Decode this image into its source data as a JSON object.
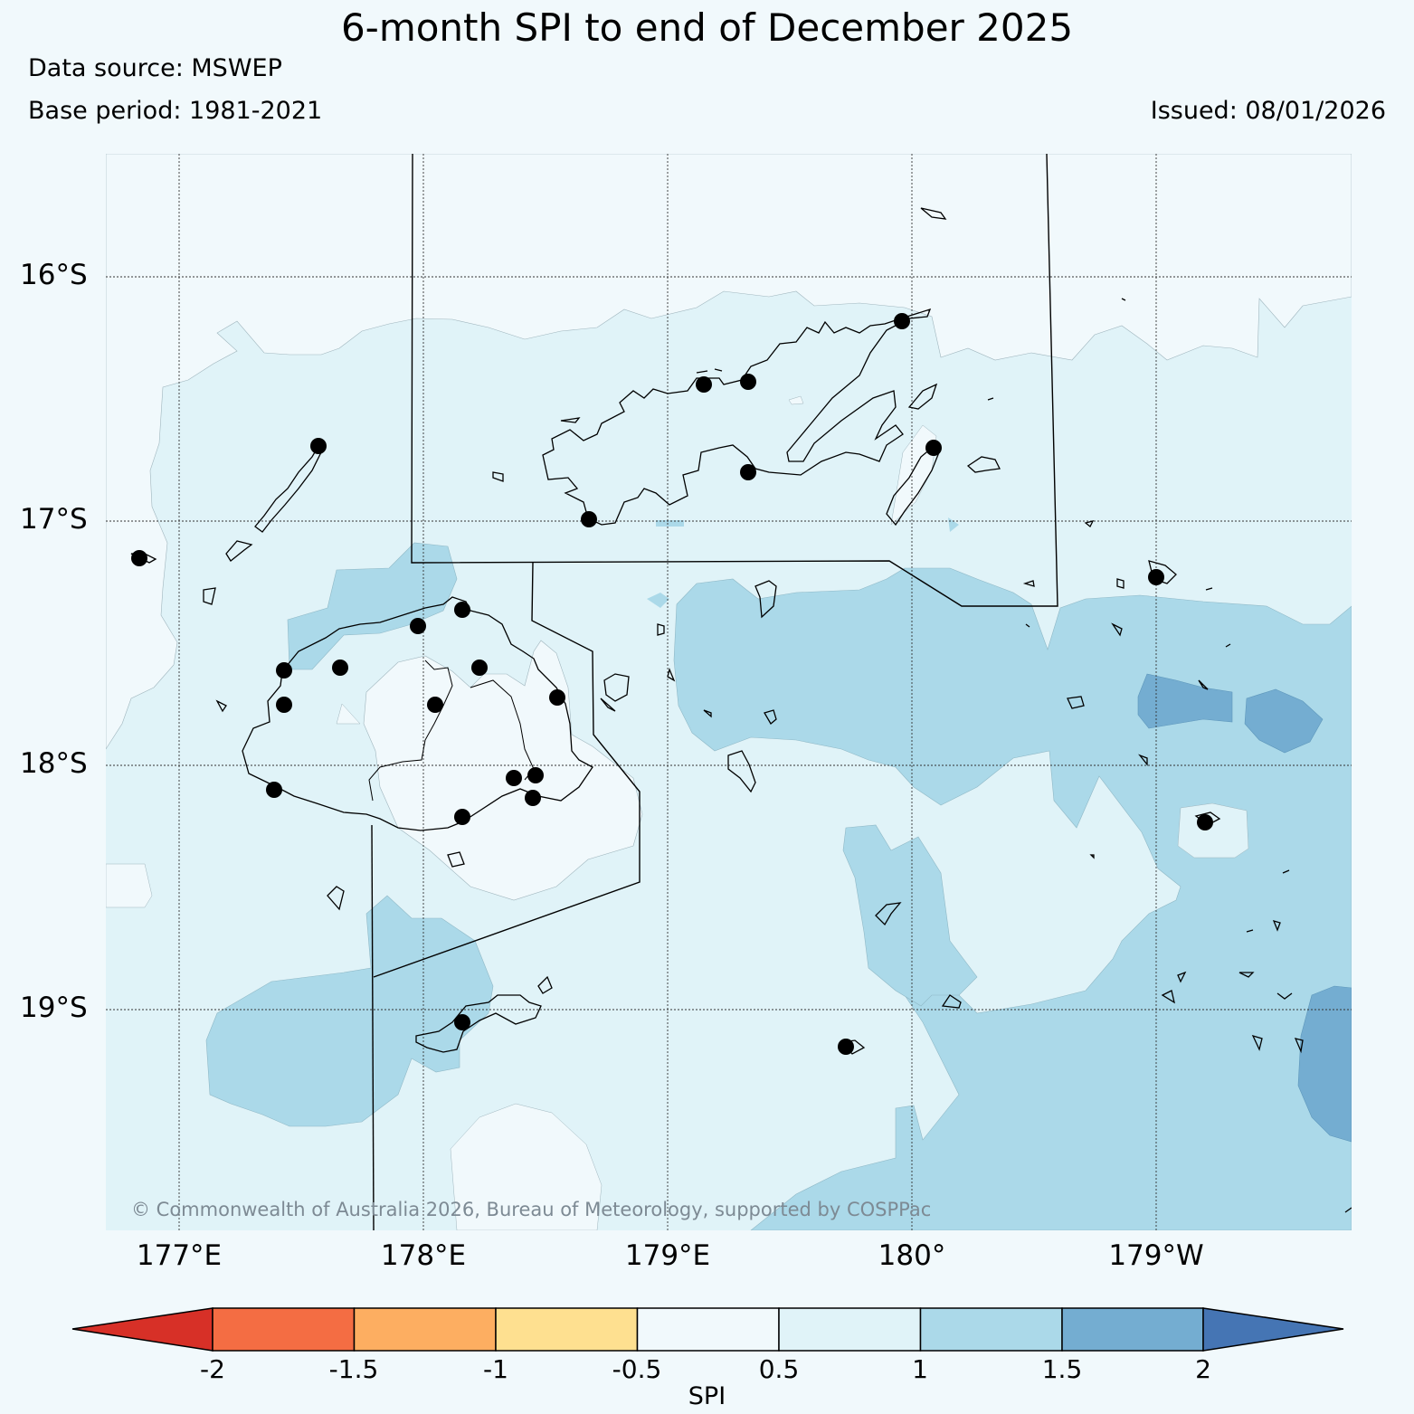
{
  "header": {
    "title": "6-month SPI to end of December 2025",
    "data_source": "Data source: MSWEP",
    "base_period": "Base period: 1981-2021",
    "issued": "Issued: 08/01/2026"
  },
  "map": {
    "lat_labels": [
      "16°S",
      "17°S",
      "18°S",
      "19°S"
    ],
    "lon_labels": [
      "177°E",
      "178°E",
      "179°E",
      "180°",
      "179°W"
    ],
    "credit": "© Commonwealth of Australia 2026, Bureau of Meteorology, supported by COSPPac",
    "spi_class_colors": {
      "0.5 to 1": "#e0f3f8",
      "1 to 1.5": "#abd9e9",
      "1.5 to 2": "#74add1",
      "-0.5 to 0.5": "#f1f9fc"
    }
  },
  "colorbar": {
    "label": "SPI",
    "ticks": [
      "-2",
      "-1.5",
      "-1",
      "-0.5",
      "0.5",
      "1",
      "1.5",
      "2"
    ],
    "colors": [
      "#d73027",
      "#f46d43",
      "#fdae61",
      "#fee090",
      "#f1f9fc",
      "#e0f3f8",
      "#abd9e9",
      "#74add1",
      "#4575b4"
    ]
  }
}
